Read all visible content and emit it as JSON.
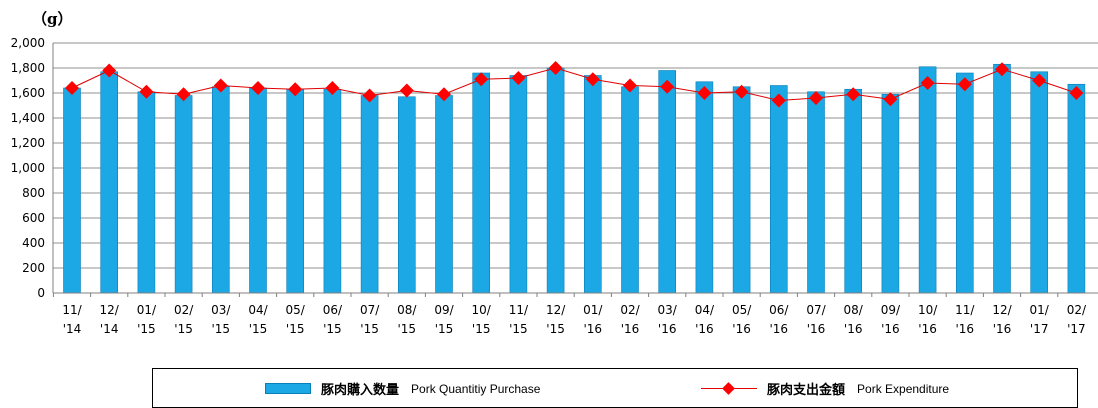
{
  "chart_data": {
    "type": "bar",
    "unit_label": "（g）",
    "ylim": [
      0,
      2000
    ],
    "y_ticks": [
      "0",
      "200",
      "400",
      "600",
      "800",
      "1,000",
      "1,200",
      "1,400",
      "1,600",
      "1,800",
      "2,000"
    ],
    "y_tick_values": [
      0,
      200,
      400,
      600,
      800,
      1000,
      1200,
      1400,
      1600,
      1800,
      2000
    ],
    "grid": true,
    "categories": [
      [
        "11/",
        "'14"
      ],
      [
        "12/",
        "'14"
      ],
      [
        "01/",
        "'15"
      ],
      [
        "02/",
        "'15"
      ],
      [
        "03/",
        "'15"
      ],
      [
        "04/",
        "'15"
      ],
      [
        "05/",
        "'15"
      ],
      [
        "06/",
        "'15"
      ],
      [
        "07/",
        "'15"
      ],
      [
        "08/",
        "'15"
      ],
      [
        "09/",
        "'15"
      ],
      [
        "10/",
        "'15"
      ],
      [
        "11/",
        "'15"
      ],
      [
        "12/",
        "'15"
      ],
      [
        "01/",
        "'16"
      ],
      [
        "02/",
        "'16"
      ],
      [
        "03/",
        "'16"
      ],
      [
        "04/",
        "'16"
      ],
      [
        "05/",
        "'16"
      ],
      [
        "06/",
        "'16"
      ],
      [
        "07/",
        "'16"
      ],
      [
        "08/",
        "'16"
      ],
      [
        "09/",
        "'16"
      ],
      [
        "10/",
        "'16"
      ],
      [
        "11/",
        "'16"
      ],
      [
        "12/",
        "'16"
      ],
      [
        "01/",
        "'17"
      ],
      [
        "02/",
        "'17"
      ]
    ],
    "series": [
      {
        "name": "豚肉購入数量 Pork Quantitiy Purchase",
        "kind": "bar",
        "color": "#1ca7e5",
        "values": [
          1640,
          1770,
          1610,
          1580,
          1650,
          1640,
          1630,
          1630,
          1580,
          1570,
          1580,
          1760,
          1740,
          1800,
          1740,
          1650,
          1780,
          1690,
          1650,
          1660,
          1610,
          1630,
          1590,
          1810,
          1760,
          1830,
          1770,
          1670
        ]
      },
      {
        "name": "豚肉支出金額 Pork Expenditure",
        "kind": "line",
        "color": "#ff0000",
        "values": [
          1640,
          1780,
          1610,
          1590,
          1660,
          1640,
          1630,
          1640,
          1580,
          1620,
          1590,
          1710,
          1720,
          1800,
          1710,
          1660,
          1650,
          1600,
          1610,
          1540,
          1560,
          1590,
          1550,
          1680,
          1670,
          1790,
          1700,
          1600
        ]
      }
    ],
    "legend": {
      "position": "bottom",
      "items": [
        {
          "jp": "豚肉購入数量",
          "en": "Pork Quantitiy Purchase"
        },
        {
          "jp": "豚肉支出金額",
          "en": "Pork Expenditure"
        }
      ]
    }
  }
}
